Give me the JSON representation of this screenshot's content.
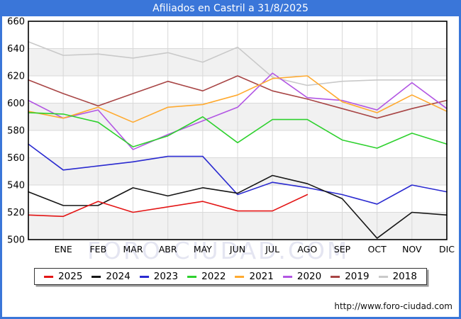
{
  "title": "Afiliados en Castril a 31/8/2025",
  "watermark": "FORO-CIUDAD.COM",
  "footer_url": "http://www.foro-ciudad.com",
  "colors": {
    "header_bg": "#3a76d9",
    "frame_border": "#3a76d9",
    "band": "#f1f1f1",
    "grid": "#d9d9d9",
    "axis_border": "#000000",
    "axis_text": "#000000"
  },
  "chart_data": {
    "type": "line",
    "title": "Afiliados en Castril a 31/8/2025",
    "categories": [
      "ENE",
      "FEB",
      "MAR",
      "ABR",
      "MAY",
      "JUN",
      "JUL",
      "AGO",
      "SEP",
      "OCT",
      "NOV",
      "DIC"
    ],
    "x_note": "13 points per full series: index 0 sits on the y-axis (year start), indices 1-12 align with month gridlines; 2025 ends at AGO",
    "ylim": [
      500,
      660
    ],
    "yticks": [
      500,
      520,
      540,
      560,
      580,
      600,
      620,
      640,
      660
    ],
    "grid": "on",
    "legend_position": "bottom",
    "series": [
      {
        "name": "2025",
        "color": "#e31515",
        "values": [
          518,
          517,
          528,
          520,
          524,
          528,
          521,
          521,
          533,
          null,
          null,
          null,
          null
        ]
      },
      {
        "name": "2024",
        "color": "#161616",
        "values": [
          535,
          525,
          525,
          538,
          532,
          538,
          534,
          547,
          541,
          530,
          501,
          520,
          518
        ]
      },
      {
        "name": "2023",
        "color": "#2a2ad0",
        "values": [
          570,
          551,
          554,
          557,
          561,
          561,
          533,
          542,
          538,
          533,
          526,
          540,
          535
        ]
      },
      {
        "name": "2022",
        "color": "#2ed12e",
        "values": [
          593,
          592,
          586,
          568,
          576,
          590,
          571,
          588,
          588,
          573,
          567,
          578,
          570
        ]
      },
      {
        "name": "2021",
        "color": "#ffaa30",
        "values": [
          594,
          589,
          597,
          586,
          597,
          599,
          606,
          618,
          620,
          601,
          593,
          606,
          594
        ]
      },
      {
        "name": "2020",
        "color": "#b256e3",
        "values": [
          602,
          589,
          595,
          566,
          577,
          587,
          597,
          622,
          604,
          602,
          595,
          615,
          596
        ]
      },
      {
        "name": "2019",
        "color": "#a84545",
        "values": [
          617,
          607,
          598,
          607,
          616,
          609,
          620,
          609,
          603,
          596,
          589,
          596,
          602
        ]
      },
      {
        "name": "2018",
        "color": "#c9c9c9",
        "values": [
          645,
          635,
          636,
          633,
          637,
          630,
          641,
          619,
          613,
          616,
          617,
          617,
          617
        ]
      }
    ]
  }
}
